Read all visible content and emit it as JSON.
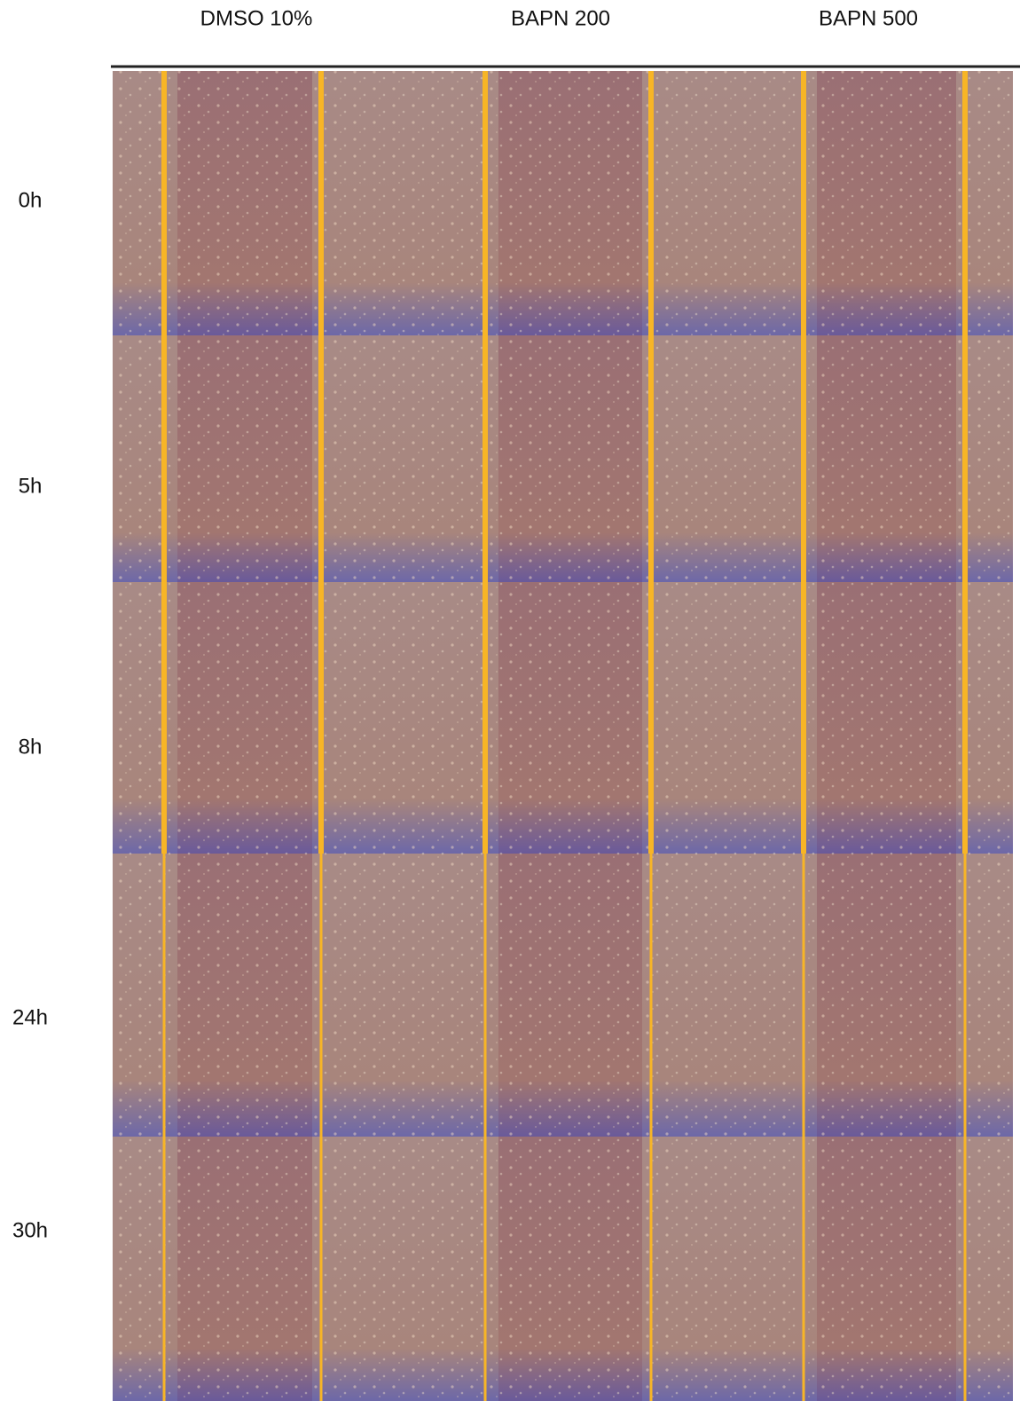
{
  "header": {
    "columns": [
      "DMSO 10%",
      "BAPN 200",
      "BAPN 500"
    ]
  },
  "rows": {
    "labels": [
      "0h",
      "5h",
      "8h",
      "24h",
      "30h"
    ]
  }
}
